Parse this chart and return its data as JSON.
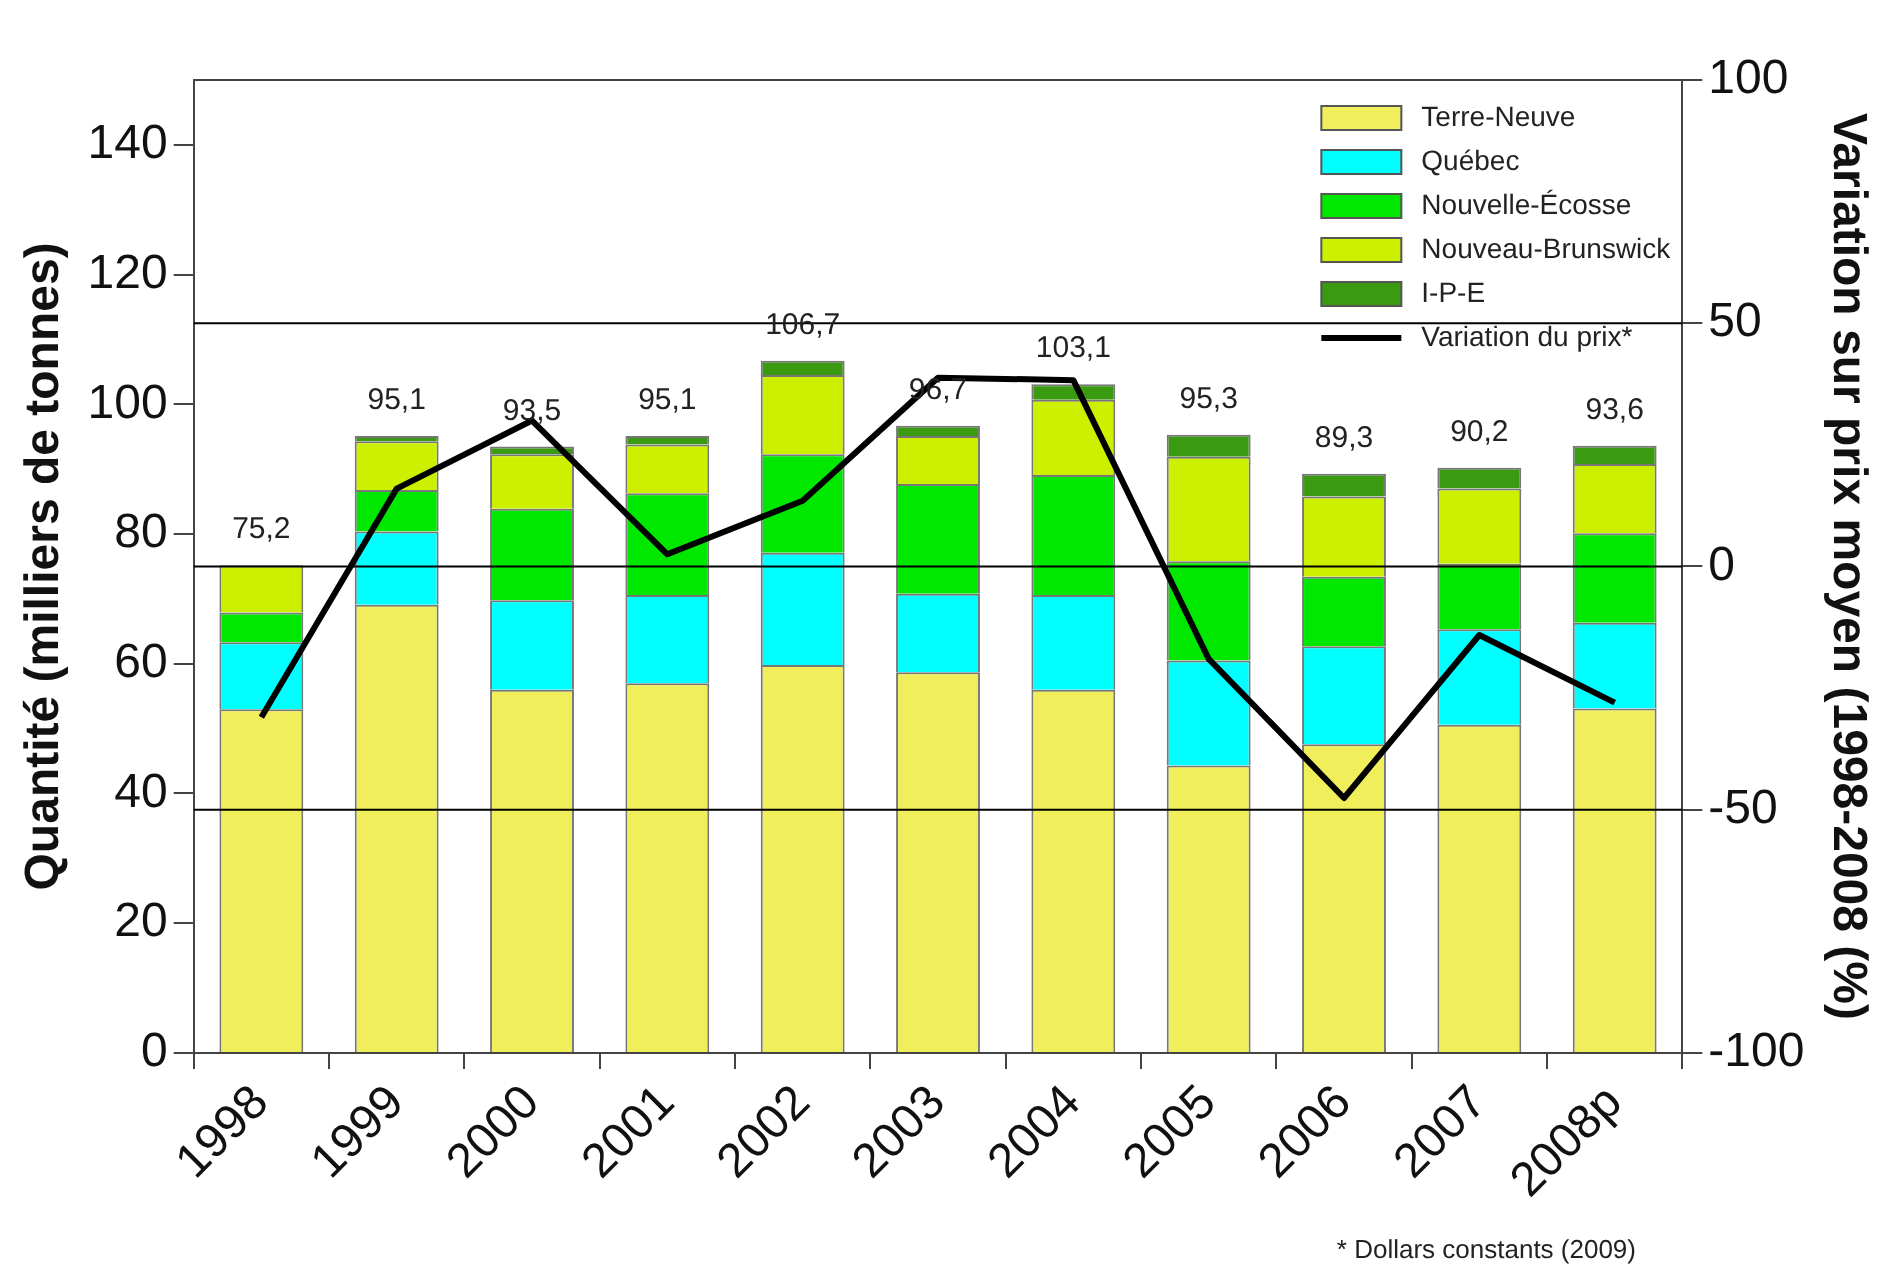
{
  "chart_data": {
    "type": "bar",
    "stacked": true,
    "ylabel": "Quantité (milliers de tonnes)",
    "y2label": "Variation sur prix moyen (1998-2008 (%)",
    "categories": [
      "1998",
      "1999",
      "2000",
      "2001",
      "2002",
      "2003",
      "2004",
      "2005",
      "2006",
      "2007",
      "2008p"
    ],
    "series": [
      {
        "name": "Terre-Neuve",
        "color": "#f0ee5a",
        "values": [
          53.0,
          69.1,
          56.0,
          57.0,
          59.8,
          58.7,
          56.0,
          44.3,
          47.6,
          50.6,
          53.1
        ]
      },
      {
        "name": "Québec",
        "color": "#00ffff",
        "values": [
          10.3,
          11.3,
          13.8,
          13.6,
          17.3,
          12.1,
          14.6,
          16.2,
          15.1,
          14.7,
          13.2
        ]
      },
      {
        "name": "Nouvelle-Écosse",
        "color": "#00e800",
        "values": [
          4.6,
          6.4,
          14.1,
          15.7,
          15.2,
          16.9,
          18.5,
          15.3,
          10.7,
          10.1,
          13.8
        ]
      },
      {
        "name": "Nouveau-Brunswick",
        "color": "#ccf000",
        "values": [
          7.3,
          7.5,
          8.4,
          7.5,
          12.2,
          7.4,
          11.6,
          16.1,
          12.4,
          11.6,
          10.7
        ]
      },
      {
        "name": "I-P-E",
        "color": "#3a9a10",
        "values": [
          null,
          0.8,
          1.2,
          1.3,
          2.2,
          1.6,
          2.4,
          3.4,
          3.5,
          3.2,
          2.8
        ]
      },
      {
        "name": "Variation du prix*",
        "type": "line",
        "axis": "y2",
        "color": "#000000",
        "values": [
          -31,
          16,
          30,
          2.5,
          13.5,
          38.8,
          38.3,
          -19,
          -47.6,
          -14.1,
          -28
        ]
      }
    ],
    "totals": [
      "75,2",
      "95,1",
      "93,5",
      "95,1",
      "106,7",
      "96,7",
      "103,1",
      "95,3",
      "89,3",
      "90,2",
      "93,6"
    ],
    "ylim": [
      0,
      150
    ],
    "yticks": [
      0,
      20,
      40,
      60,
      80,
      100,
      120,
      140
    ],
    "y2lim": [
      -100,
      100
    ],
    "y2ticks": [
      -100,
      -50,
      0,
      50,
      100
    ],
    "ref_lines": [
      {
        "axis": "y2",
        "value": 50,
        "color": "#000000"
      },
      {
        "axis": "y2",
        "value": 0,
        "color": "#000000"
      },
      {
        "axis": "y2",
        "value": -50,
        "color": "#000000"
      }
    ],
    "legend": "top right",
    "marker": "none",
    "line_style": "solid",
    "annotations": [
      "* Dollars constants (2009)"
    ]
  }
}
